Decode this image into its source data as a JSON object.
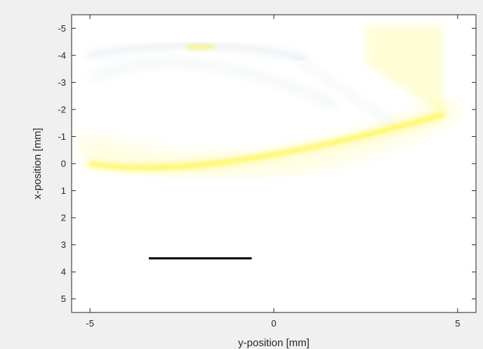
{
  "chart_data": {
    "type": "heatmap",
    "title": "",
    "xlabel": "y-position [mm]",
    "ylabel": "x-position [mm]",
    "xlim": [
      -5.5,
      5.5
    ],
    "ylim": [
      -5.5,
      5.5
    ],
    "y_direction": "reversed",
    "grid": false,
    "legend": "none",
    "x_ticks": [
      -5,
      0,
      5
    ],
    "x_tick_labels": [
      "-5",
      "0",
      "5"
    ],
    "y_ticks": [
      -5,
      -4,
      -3,
      -2,
      -1,
      0,
      1,
      2,
      3,
      4,
      5
    ],
    "y_tick_labels": [
      "-5",
      "-4",
      "-3",
      "-2",
      "-1",
      "0",
      "1",
      "2",
      "3",
      "4",
      "5"
    ],
    "colors": {
      "figure_background": "#f0f0f0",
      "axes_background": "#ffffff",
      "positive_intensity": "#fff200",
      "negative_intensity": "#4a7f9a",
      "scale_bar": "#000000",
      "axis": "#262626"
    },
    "features": [
      {
        "name": "upper-arc",
        "sign": "negative",
        "start": [
          -5.0,
          -4.0
        ],
        "control": [
          -2.0,
          -4.8
        ],
        "end": [
          0.8,
          -3.9
        ],
        "intensity": 0.12
      },
      {
        "name": "upper-arc-bright-spot",
        "sign": "positive",
        "center": [
          -2.0,
          -4.3
        ],
        "intensity": 0.35
      },
      {
        "name": "inner-upper-arc",
        "sign": "negative",
        "start": [
          -4.9,
          -3.2
        ],
        "control": [
          -2.2,
          -4.6
        ],
        "end": [
          1.6,
          -2.2
        ],
        "intensity": 0.07
      },
      {
        "name": "diagonal-streak",
        "sign": "negative",
        "start": [
          0.6,
          -3.9
        ],
        "end": [
          3.2,
          -1.5
        ],
        "intensity": 0.06
      },
      {
        "name": "right-fan",
        "sign": "positive",
        "corners": [
          [
            2.5,
            -5.1
          ],
          [
            4.6,
            -5.1
          ],
          [
            4.6,
            -1.8
          ],
          [
            2.5,
            -3.7
          ]
        ],
        "intensity": 0.16
      },
      {
        "name": "lower-arc",
        "sign": "positive",
        "start": [
          -5.0,
          0.0
        ],
        "control": [
          -2.0,
          0.7
        ],
        "end": [
          4.6,
          -1.8
        ],
        "intensity": 0.5
      },
      {
        "name": "lower-arc-fan",
        "sign": "positive",
        "start": [
          -5.0,
          -0.6
        ],
        "control": [
          0.0,
          1.3
        ],
        "end": [
          4.7,
          -2.0
        ],
        "intensity": 0.12
      }
    ],
    "scale_bar": {
      "x_start": -3.4,
      "x_end": -0.6,
      "y": 3.5
    }
  }
}
